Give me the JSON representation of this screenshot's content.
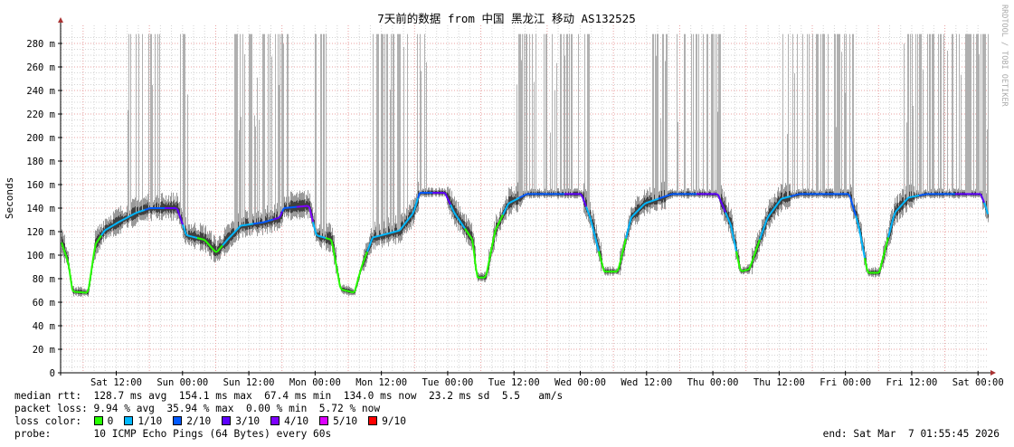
{
  "chart_data": {
    "type": "line",
    "title": "7天前的数据 from  中国 黑龙江 移动 AS132525",
    "ylabel": "Seconds",
    "watermark": "RRDTOOL / TOBI OETIKER",
    "y_unit_suffix": "m",
    "ylim": [
      0,
      0.29
    ],
    "y_ticks": [
      "0",
      "20 m",
      "40 m",
      "60 m",
      "80 m",
      "100 m",
      "120 m",
      "140 m",
      "160 m",
      "180 m",
      "200 m",
      "220 m",
      "240 m",
      "260 m",
      "280 m"
    ],
    "y_tick_values_ms": [
      0,
      20,
      40,
      60,
      80,
      100,
      120,
      140,
      160,
      180,
      200,
      220,
      240,
      260,
      280
    ],
    "xlim": [
      "2026-02-28T01:55:45",
      "2026-03-07T01:55:45"
    ],
    "x_ticks": [
      {
        "label": "Sat 12:00",
        "t": "2026-02-28T12:00"
      },
      {
        "label": "Sun 00:00",
        "t": "2026-03-01T00:00"
      },
      {
        "label": "Sun 12:00",
        "t": "2026-03-01T12:00"
      },
      {
        "label": "Mon 00:00",
        "t": "2026-03-02T00:00"
      },
      {
        "label": "Mon 12:00",
        "t": "2026-03-02T12:00"
      },
      {
        "label": "Tue 00:00",
        "t": "2026-03-03T00:00"
      },
      {
        "label": "Tue 12:00",
        "t": "2026-03-03T12:00"
      },
      {
        "label": "Wed 00:00",
        "t": "2026-03-04T00:00"
      },
      {
        "label": "Wed 12:00",
        "t": "2026-03-04T12:00"
      },
      {
        "label": "Thu 00:00",
        "t": "2026-03-05T00:00"
      },
      {
        "label": "Thu 12:00",
        "t": "2026-03-05T12:00"
      },
      {
        "label": "Fri 00:00",
        "t": "2026-03-06T00:00"
      },
      {
        "label": "Fri 12:00",
        "t": "2026-03-06T12:00"
      },
      {
        "label": "Sat 00:00",
        "t": "2026-03-07T00:00"
      }
    ],
    "grid": true,
    "series": [
      {
        "name": "median rtt",
        "unit": "ms",
        "points": [
          [
            "2026-02-28T01:56",
            113,
            0
          ],
          [
            "2026-02-28T03:18",
            94,
            0
          ],
          [
            "2026-02-28T04:06",
            69,
            0
          ],
          [
            "2026-02-28T06:54",
            68,
            0
          ],
          [
            "2026-02-28T08:12",
            109,
            0
          ],
          [
            "2026-02-28T09:54",
            121,
            1
          ],
          [
            "2026-02-28T12:24",
            128,
            1
          ],
          [
            "2026-02-28T15:36",
            136,
            1
          ],
          [
            "2026-02-28T18:06",
            140,
            2
          ],
          [
            "2026-02-28T23:00",
            140,
            3
          ],
          [
            "2026-03-01T00:42",
            117,
            1
          ],
          [
            "2026-03-01T04:00",
            113,
            0
          ],
          [
            "2026-03-01T06:06",
            102,
            0
          ],
          [
            "2026-03-01T08:06",
            113,
            1
          ],
          [
            "2026-03-01T10:30",
            125,
            1
          ],
          [
            "2026-03-01T14:42",
            128,
            2
          ],
          [
            "2026-03-01T17:36",
            132,
            3
          ],
          [
            "2026-03-01T18:18",
            140,
            2
          ],
          [
            "2026-03-01T22:54",
            142,
            4
          ],
          [
            "2026-03-02T00:12",
            117,
            1
          ],
          [
            "2026-03-02T03:00",
            113,
            0
          ],
          [
            "2026-03-02T04:36",
            71,
            0
          ],
          [
            "2026-03-02T07:06",
            68,
            0
          ],
          [
            "2026-03-02T08:24",
            90,
            0
          ],
          [
            "2026-03-02T10:24",
            115,
            1
          ],
          [
            "2026-03-02T12:54",
            118,
            1
          ],
          [
            "2026-03-02T15:18",
            121,
            1
          ],
          [
            "2026-03-02T17:48",
            136,
            1
          ],
          [
            "2026-03-02T18:54",
            153,
            2
          ],
          [
            "2026-03-02T23:30",
            153,
            3
          ],
          [
            "2026-03-03T01:12",
            136,
            1
          ],
          [
            "2026-03-03T04:30",
            113,
            0
          ],
          [
            "2026-03-03T05:18",
            81,
            0
          ],
          [
            "2026-03-03T06:54",
            81,
            0
          ],
          [
            "2026-03-03T08:36",
            121,
            0
          ],
          [
            "2026-03-03T11:00",
            144,
            1
          ],
          [
            "2026-03-03T14:18",
            152,
            2
          ],
          [
            "2026-03-03T17:36",
            152,
            2
          ],
          [
            "2026-03-04T00:12",
            152,
            3
          ],
          [
            "2026-03-04T01:48",
            132,
            1
          ],
          [
            "2026-03-04T04:18",
            86,
            0
          ],
          [
            "2026-03-04T06:48",
            86,
            0
          ],
          [
            "2026-03-04T09:12",
            132,
            1
          ],
          [
            "2026-03-04T11:42",
            144,
            1
          ],
          [
            "2026-03-04T16:36",
            152,
            2
          ],
          [
            "2026-03-05T00:54",
            152,
            3
          ],
          [
            "2026-03-05T03:18",
            125,
            1
          ],
          [
            "2026-03-05T05:00",
            86,
            0
          ],
          [
            "2026-03-05T06:36",
            88,
            0
          ],
          [
            "2026-03-05T09:54",
            132,
            1
          ],
          [
            "2026-03-05T12:24",
            148,
            1
          ],
          [
            "2026-03-05T15:42",
            152,
            2
          ],
          [
            "2026-03-06T00:42",
            152,
            2
          ],
          [
            "2026-03-06T02:24",
            125,
            1
          ],
          [
            "2026-03-06T04:00",
            85,
            0
          ],
          [
            "2026-03-06T06:06",
            85,
            0
          ],
          [
            "2026-03-06T08:54",
            136,
            1
          ],
          [
            "2026-03-06T11:24",
            149,
            1
          ],
          [
            "2026-03-06T14:42",
            152,
            2
          ],
          [
            "2026-03-07T00:30",
            152,
            3
          ],
          [
            "2026-03-07T01:30",
            140,
            1
          ],
          [
            "2026-03-07T01:55",
            132,
            1
          ]
        ]
      }
    ],
    "loss_spike_periods": [
      [
        "2026-02-28T14:00",
        "2026-02-28T19:48"
      ],
      [
        "2026-02-28T23:30",
        "2026-03-01T02:00"
      ],
      [
        "2026-03-01T09:24",
        "2026-03-01T19:18"
      ],
      [
        "2026-03-01T23:24",
        "2026-03-02T02:30"
      ],
      [
        "2026-03-02T09:54",
        "2026-03-02T20:12"
      ],
      [
        "2026-03-03T11:54",
        "2026-03-04T01:30"
      ],
      [
        "2026-03-04T13:00",
        "2026-03-05T01:42"
      ],
      [
        "2026-03-05T12:00",
        "2026-03-06T01:30"
      ],
      [
        "2026-03-06T10:12",
        "2026-03-07T01:48"
      ]
    ],
    "loss_colors": [
      "#26ff00",
      "#00b8ff",
      "#0059ff",
      "#5e00ff",
      "#7e00ff",
      "#dd00ff",
      "#ff0000"
    ],
    "grid_colors": {
      "major": "#e8a0a0",
      "minor": "#d4d4d4",
      "smoke": "#b0b0b0"
    }
  },
  "legend": {
    "median_rtt": "median rtt:  128.7 ms avg  154.1 ms max  67.4 ms min  134.0 ms now  23.2 ms sd  5.5   am/s",
    "packet_loss": "packet loss: 9.94 % avg  35.94 % max  0.00 % min  5.72 % now",
    "loss_color_label": "loss color:  ",
    "loss_items": [
      {
        "label": "0",
        "color": "#26ff00"
      },
      {
        "label": "1/10",
        "color": "#00b8ff"
      },
      {
        "label": "2/10",
        "color": "#0059ff"
      },
      {
        "label": "3/10",
        "color": "#5e00ff"
      },
      {
        "label": "4/10",
        "color": "#7e00ff"
      },
      {
        "label": "5/10",
        "color": "#dd00ff"
      },
      {
        "label": "9/10",
        "color": "#ff0000"
      }
    ],
    "probe": "probe:       10 ICMP Echo Pings (64 Bytes) every 60s",
    "end": "end: Sat Mar  7 01:55:45 2026"
  }
}
